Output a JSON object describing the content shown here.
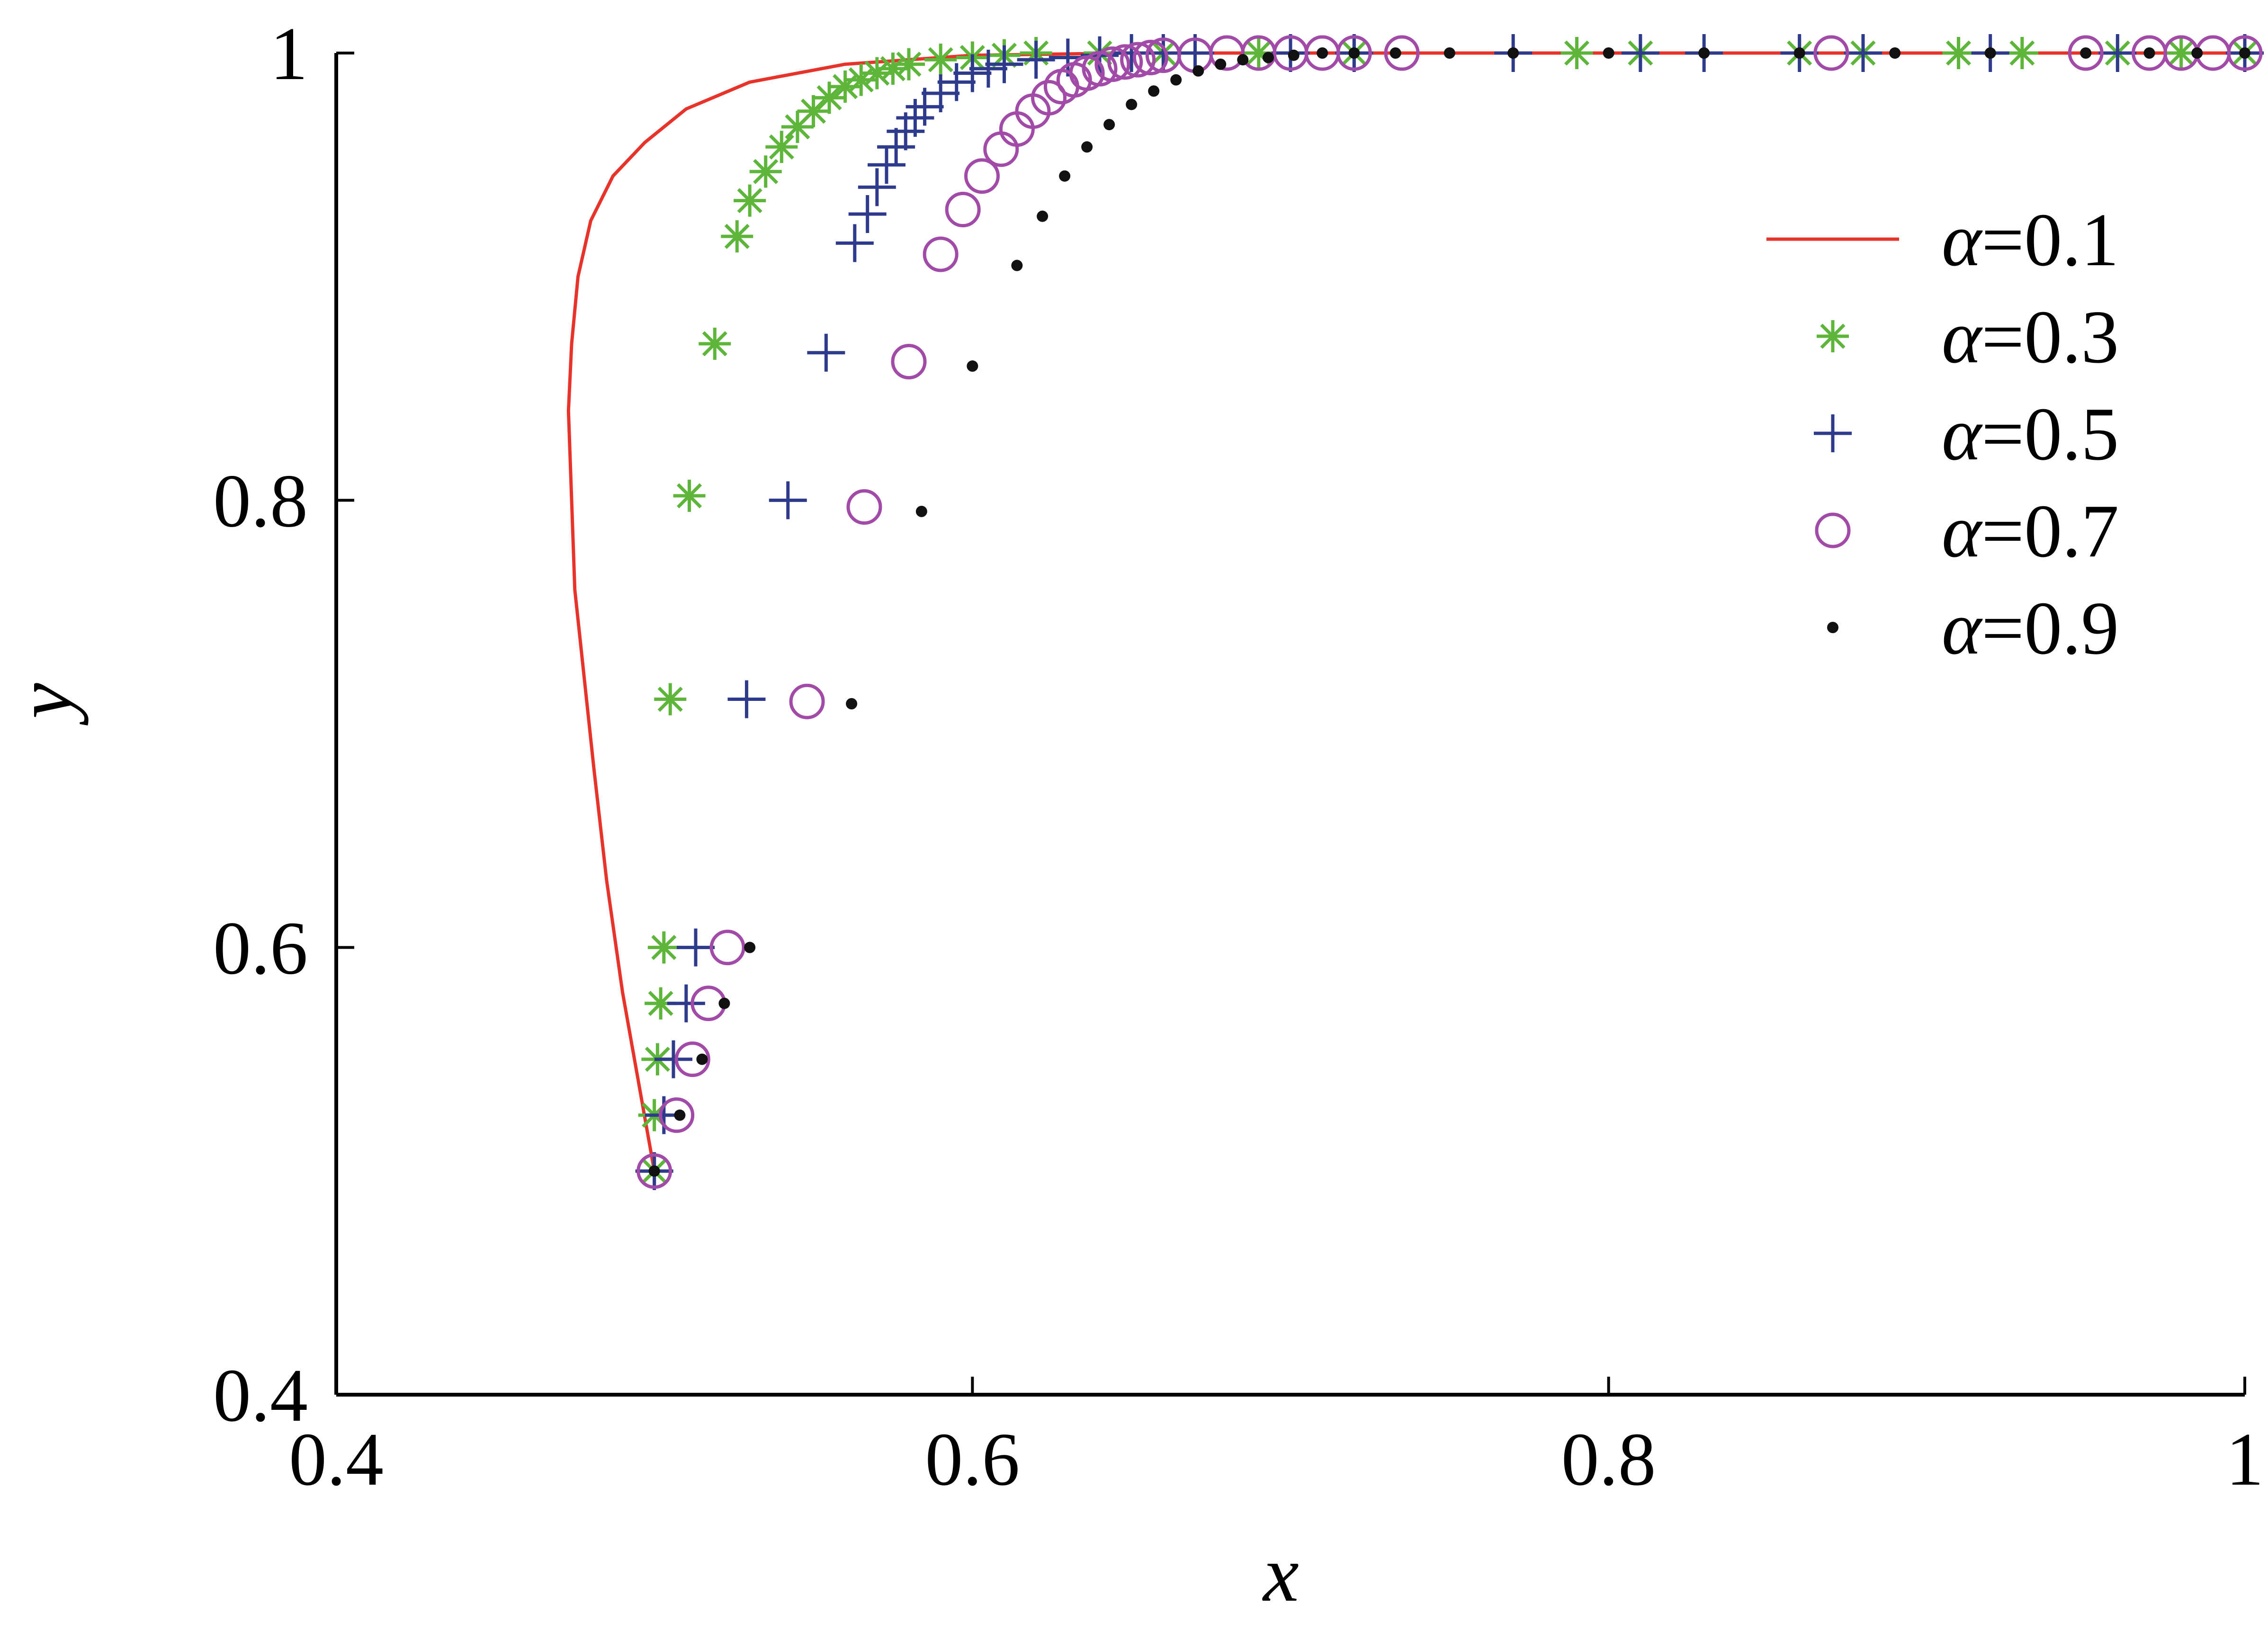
{
  "chart_data": {
    "type": "scatter",
    "title": "",
    "xlabel": "x",
    "ylabel": "y",
    "xlim": [
      0.4,
      1.0
    ],
    "ylim": [
      0.4,
      1.0
    ],
    "x_ticks": [
      0.4,
      0.6,
      0.8,
      1.0
    ],
    "x_tick_labels": [
      "0.4",
      "0.6",
      "0.8",
      "1"
    ],
    "y_ticks": [
      0.4,
      0.6,
      0.8,
      1.0
    ],
    "y_tick_labels": [
      "0.4",
      "0.6",
      "0.8",
      "1"
    ],
    "grid": false,
    "legend_position": "top-right",
    "series": [
      {
        "name": "α=0.1",
        "label_symbol": "α",
        "label_value": "=0.1",
        "marker": "line",
        "color": "#e8332a",
        "x": [
          0.5,
          0.495,
          0.49,
          0.485,
          0.481,
          0.478,
          0.475,
          0.474,
          0.473,
          0.474,
          0.476,
          0.48,
          0.487,
          0.497,
          0.51,
          0.53,
          0.56,
          0.6,
          0.65,
          0.7,
          0.8,
          0.9,
          1.0
        ],
        "y": [
          0.5,
          0.54,
          0.58,
          0.63,
          0.68,
          0.72,
          0.76,
          0.8,
          0.84,
          0.87,
          0.9,
          0.925,
          0.945,
          0.96,
          0.975,
          0.987,
          0.995,
          0.999,
          1.0,
          1.0,
          1.0,
          1.0,
          1.0
        ]
      },
      {
        "name": "α=0.3",
        "label_symbol": "α",
        "label_value": "=0.3",
        "marker": "asterisk",
        "color": "#5db53a",
        "x": [
          0.5,
          0.5,
          0.501,
          0.502,
          0.503,
          0.505,
          0.511,
          0.519,
          0.526,
          0.53,
          0.535,
          0.54,
          0.545,
          0.55,
          0.555,
          0.56,
          0.565,
          0.57,
          0.575,
          0.58,
          0.59,
          0.6,
          0.61,
          0.62,
          0.64,
          0.66,
          0.69,
          0.72,
          0.79,
          0.81,
          0.86,
          0.88,
          0.91,
          0.93,
          0.96,
          0.98,
          1.0
        ],
        "y": [
          0.5,
          0.525,
          0.55,
          0.575,
          0.6,
          0.711,
          0.802,
          0.87,
          0.918,
          0.934,
          0.947,
          0.958,
          0.967,
          0.974,
          0.98,
          0.985,
          0.988,
          0.991,
          0.993,
          0.995,
          0.997,
          0.998,
          0.999,
          1.0,
          1.0,
          1.0,
          1.0,
          1.0,
          1.0,
          1.0,
          1.0,
          1.0,
          1.0,
          1.0,
          1.0,
          1.0,
          1.0
        ]
      },
      {
        "name": "α=0.5",
        "label_symbol": "α",
        "label_value": "=0.5",
        "marker": "plus",
        "color": "#2e3a8c",
        "x": [
          0.5,
          0.503,
          0.506,
          0.51,
          0.513,
          0.529,
          0.542,
          0.554,
          0.563,
          0.567,
          0.57,
          0.573,
          0.576,
          0.579,
          0.582,
          0.585,
          0.59,
          0.595,
          0.6,
          0.605,
          0.61,
          0.62,
          0.63,
          0.64,
          0.65,
          0.66,
          0.67,
          0.7,
          0.72,
          0.77,
          0.81,
          0.83,
          0.86,
          0.88,
          0.92,
          0.96,
          1.0
        ],
        "y": [
          0.5,
          0.525,
          0.55,
          0.575,
          0.6,
          0.711,
          0.8,
          0.866,
          0.915,
          0.928,
          0.94,
          0.95,
          0.958,
          0.965,
          0.971,
          0.976,
          0.982,
          0.987,
          0.991,
          0.993,
          0.995,
          0.997,
          0.998,
          0.999,
          1.0,
          1.0,
          1.0,
          1.0,
          1.0,
          1.0,
          1.0,
          1.0,
          1.0,
          1.0,
          1.0,
          1.0,
          1.0
        ]
      },
      {
        "name": "α=0.7",
        "label_symbol": "α",
        "label_value": "=0.7",
        "marker": "circle",
        "color": "#a24aa8",
        "x": [
          0.5,
          0.507,
          0.512,
          0.517,
          0.523,
          0.548,
          0.566,
          0.58,
          0.59,
          0.597,
          0.603,
          0.609,
          0.614,
          0.619,
          0.624,
          0.628,
          0.632,
          0.636,
          0.64,
          0.644,
          0.648,
          0.652,
          0.656,
          0.66,
          0.67,
          0.68,
          0.69,
          0.7,
          0.71,
          0.72,
          0.735,
          0.87,
          0.95,
          0.97,
          0.98,
          0.99,
          1.0
        ],
        "y": [
          0.5,
          0.525,
          0.55,
          0.575,
          0.6,
          0.71,
          0.797,
          0.862,
          0.91,
          0.93,
          0.945,
          0.957,
          0.966,
          0.974,
          0.98,
          0.985,
          0.988,
          0.991,
          0.993,
          0.995,
          0.996,
          0.997,
          0.998,
          0.999,
          0.999,
          1.0,
          1.0,
          1.0,
          1.0,
          1.0,
          1.0,
          1.0,
          1.0,
          1.0,
          1.0,
          1.0,
          1.0
        ]
      },
      {
        "name": "α=0.9",
        "label_symbol": "α",
        "label_value": "=0.9",
        "marker": "dot",
        "color": "#111111",
        "x": [
          0.5,
          0.508,
          0.515,
          0.522,
          0.53,
          0.562,
          0.584,
          0.6,
          0.614,
          0.622,
          0.629,
          0.636,
          0.643,
          0.65,
          0.657,
          0.664,
          0.671,
          0.678,
          0.685,
          0.693,
          0.701,
          0.71,
          0.72,
          0.733,
          0.75,
          0.77,
          0.8,
          0.83,
          0.86,
          0.89,
          0.92,
          0.95,
          0.97,
          0.985,
          1.0
        ],
        "y": [
          0.5,
          0.525,
          0.55,
          0.575,
          0.6,
          0.709,
          0.795,
          0.86,
          0.905,
          0.927,
          0.945,
          0.958,
          0.968,
          0.977,
          0.983,
          0.988,
          0.992,
          0.995,
          0.997,
          0.998,
          0.999,
          1.0,
          1.0,
          1.0,
          1.0,
          1.0,
          1.0,
          1.0,
          1.0,
          1.0,
          1.0,
          1.0,
          1.0,
          1.0,
          1.0
        ]
      }
    ]
  }
}
